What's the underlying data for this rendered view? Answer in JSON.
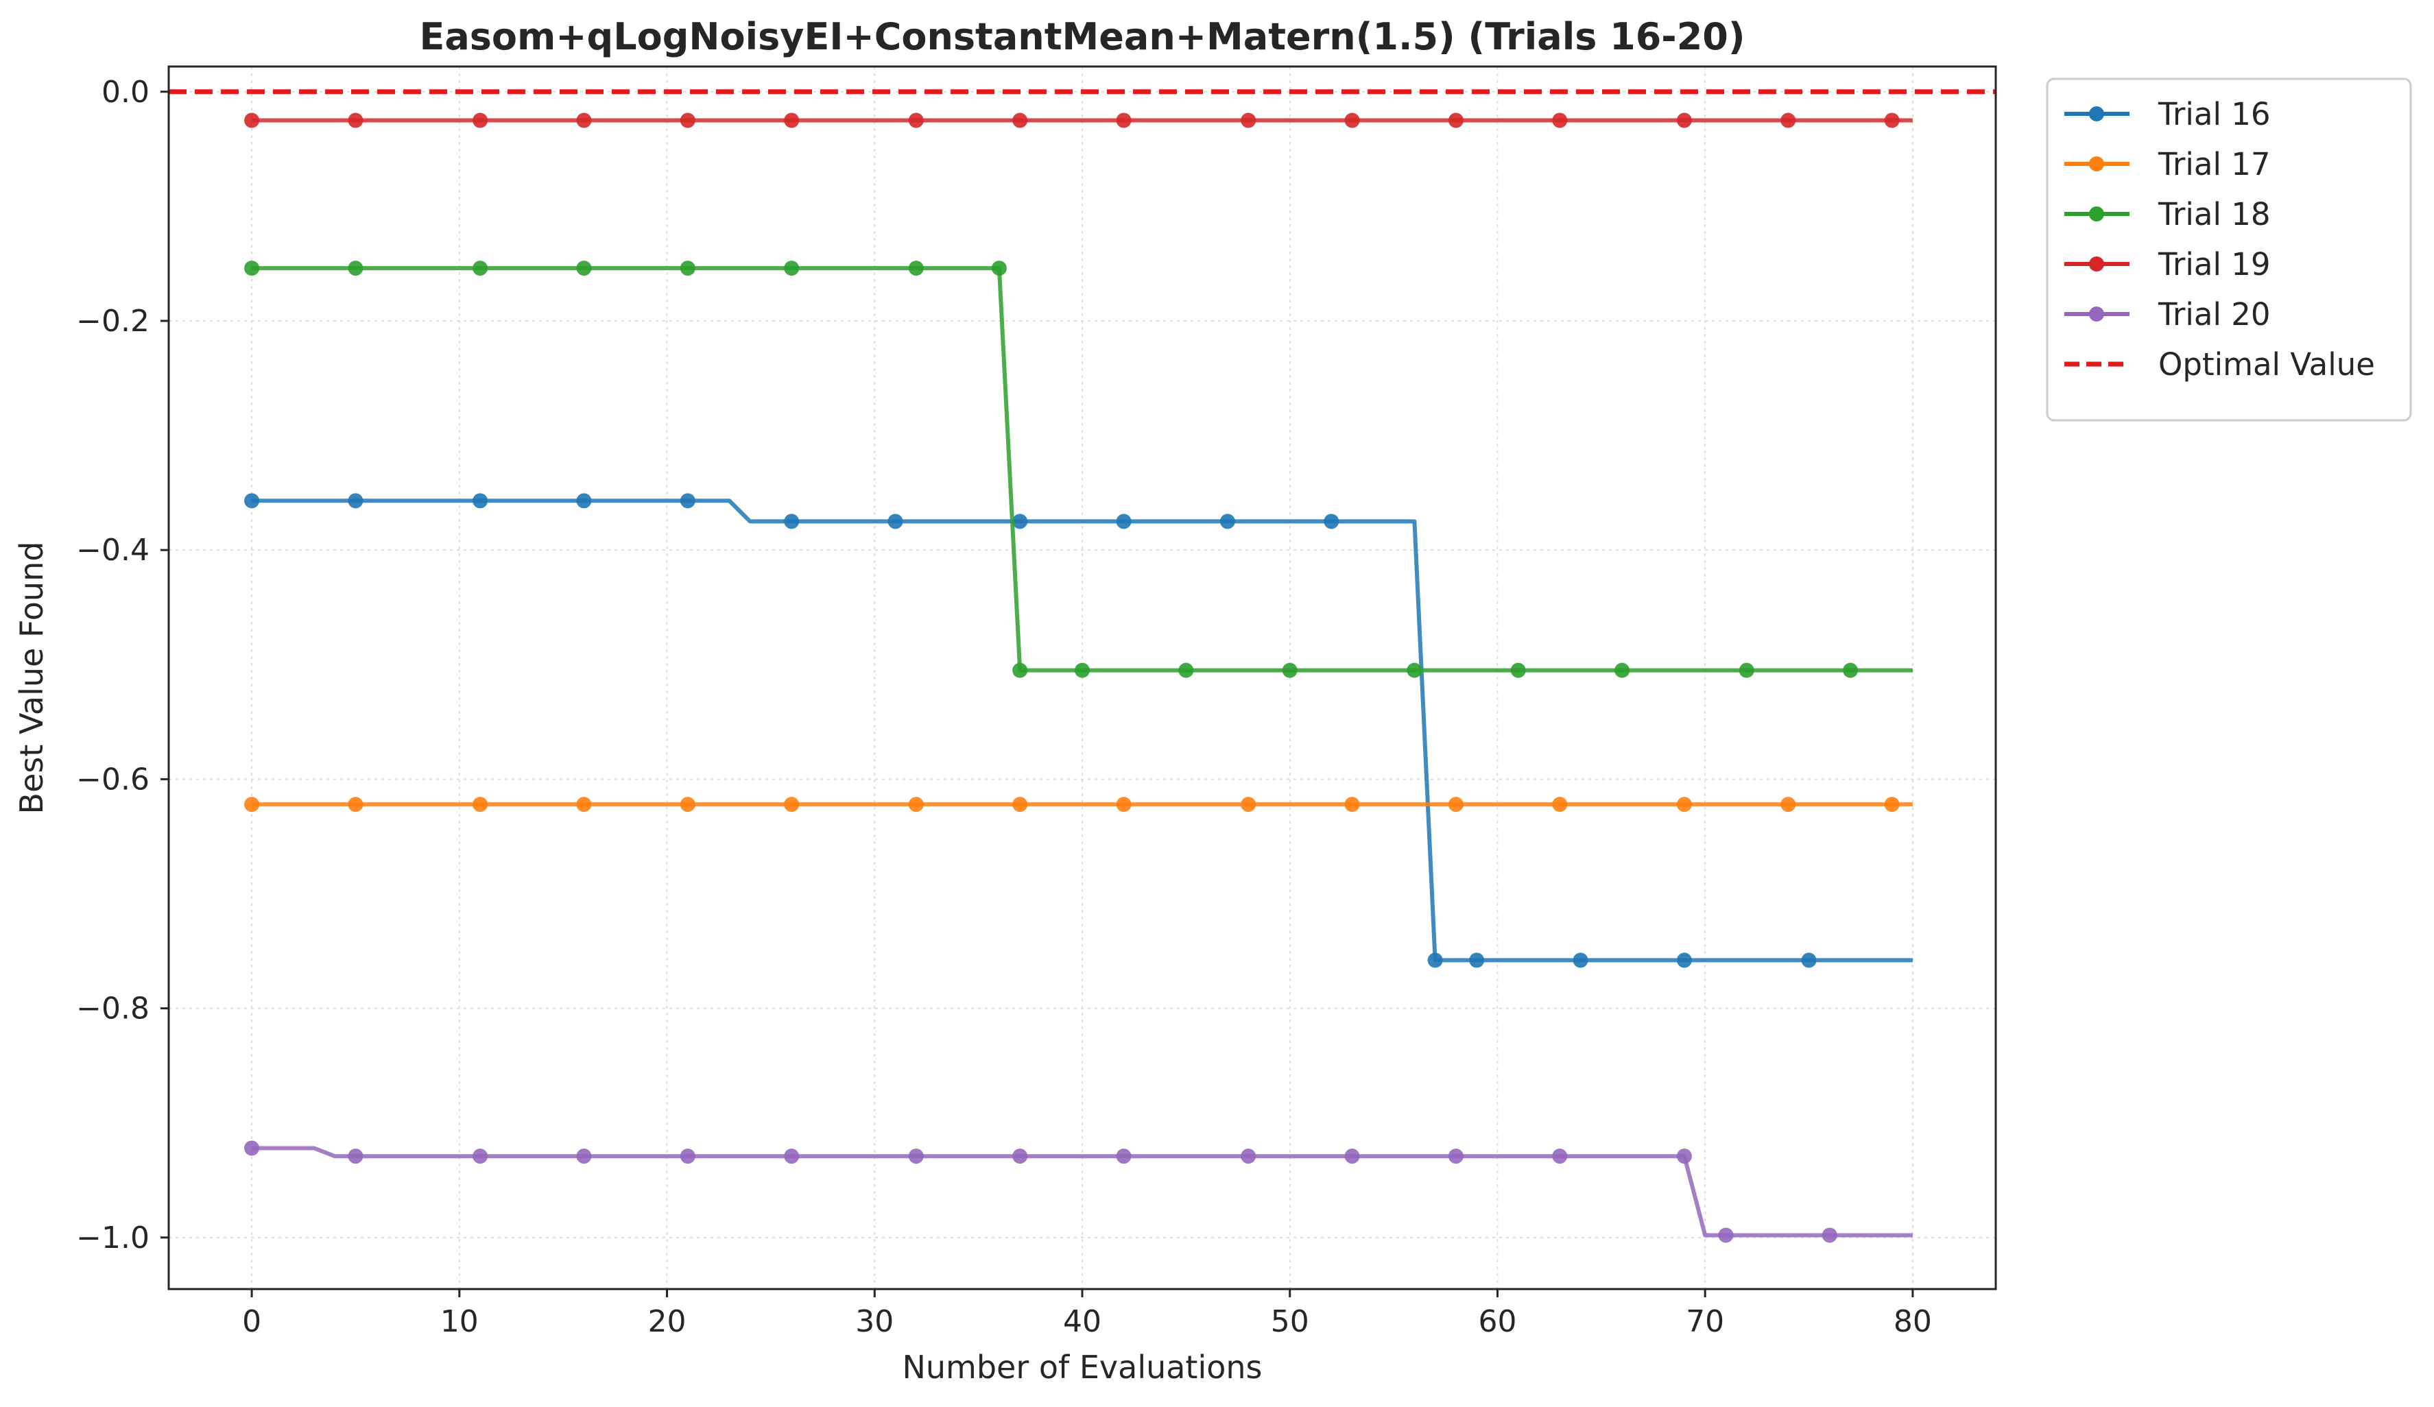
{
  "chart_data": {
    "type": "line",
    "title": "Easom+qLogNoisyEI+ConstantMean+Matern(1.5) (Trials 16-20)",
    "xlabel": "Number of Evaluations",
    "ylabel": "Best Value Found",
    "xlim": [
      -4,
      84
    ],
    "ylim": [
      -1.045,
      0.022
    ],
    "xticks": [
      0,
      10,
      20,
      30,
      40,
      50,
      60,
      70,
      80
    ],
    "xtick_labels": [
      "0",
      "10",
      "20",
      "30",
      "40",
      "50",
      "60",
      "70",
      "80"
    ],
    "yticks": [
      0.0,
      -0.2,
      -0.4,
      -0.6,
      -0.8,
      -1.0
    ],
    "ytick_labels": [
      "0.0",
      "−0.2",
      "−0.4",
      "−0.6",
      "−0.8",
      "−1.0"
    ],
    "grid": true,
    "legend_position": "outside-upper-right",
    "series": [
      {
        "name": "Trial 16",
        "color": "#1f77b4",
        "points": [
          [
            0,
            -0.357
          ],
          [
            23,
            -0.357
          ],
          [
            24,
            -0.375
          ],
          [
            56,
            -0.375
          ],
          [
            57,
            -0.758
          ],
          [
            80,
            -0.758
          ]
        ],
        "markers_x": [
          0,
          5,
          11,
          16,
          21,
          26,
          31,
          37,
          42,
          47,
          52,
          57,
          59,
          64,
          69,
          75
        ]
      },
      {
        "name": "Trial 17",
        "color": "#ff7f0e",
        "points": [
          [
            0,
            -0.622
          ],
          [
            80,
            -0.622
          ]
        ],
        "markers_x": [
          0,
          5,
          11,
          16,
          21,
          26,
          32,
          37,
          42,
          48,
          53,
          58,
          63,
          69,
          74,
          79
        ]
      },
      {
        "name": "Trial 18",
        "color": "#2ca02c",
        "points": [
          [
            0,
            -0.154
          ],
          [
            36,
            -0.154
          ],
          [
            37,
            -0.505
          ],
          [
            80,
            -0.505
          ]
        ],
        "markers_x": [
          0,
          5,
          11,
          16,
          21,
          26,
          32,
          36,
          37,
          40,
          45,
          50,
          56,
          61,
          66,
          72,
          77
        ]
      },
      {
        "name": "Trial 19",
        "color": "#d62728",
        "points": [
          [
            0,
            -0.025
          ],
          [
            80,
            -0.025
          ]
        ],
        "markers_x": [
          0,
          5,
          11,
          16,
          21,
          26,
          32,
          37,
          42,
          48,
          53,
          58,
          63,
          69,
          74,
          79
        ]
      },
      {
        "name": "Trial 20",
        "color": "#9467bd",
        "points": [
          [
            0,
            -0.922
          ],
          [
            3,
            -0.922
          ],
          [
            4,
            -0.929
          ],
          [
            69,
            -0.929
          ],
          [
            70,
            -0.998
          ],
          [
            80,
            -0.998
          ]
        ],
        "markers_x": [
          0,
          5,
          11,
          16,
          21,
          26,
          32,
          37,
          42,
          48,
          53,
          58,
          63,
          69,
          71,
          76
        ]
      }
    ],
    "reference_line": {
      "name": "Optimal Value",
      "y": 0.0,
      "color": "#e41a1c",
      "style": "dashed"
    }
  }
}
